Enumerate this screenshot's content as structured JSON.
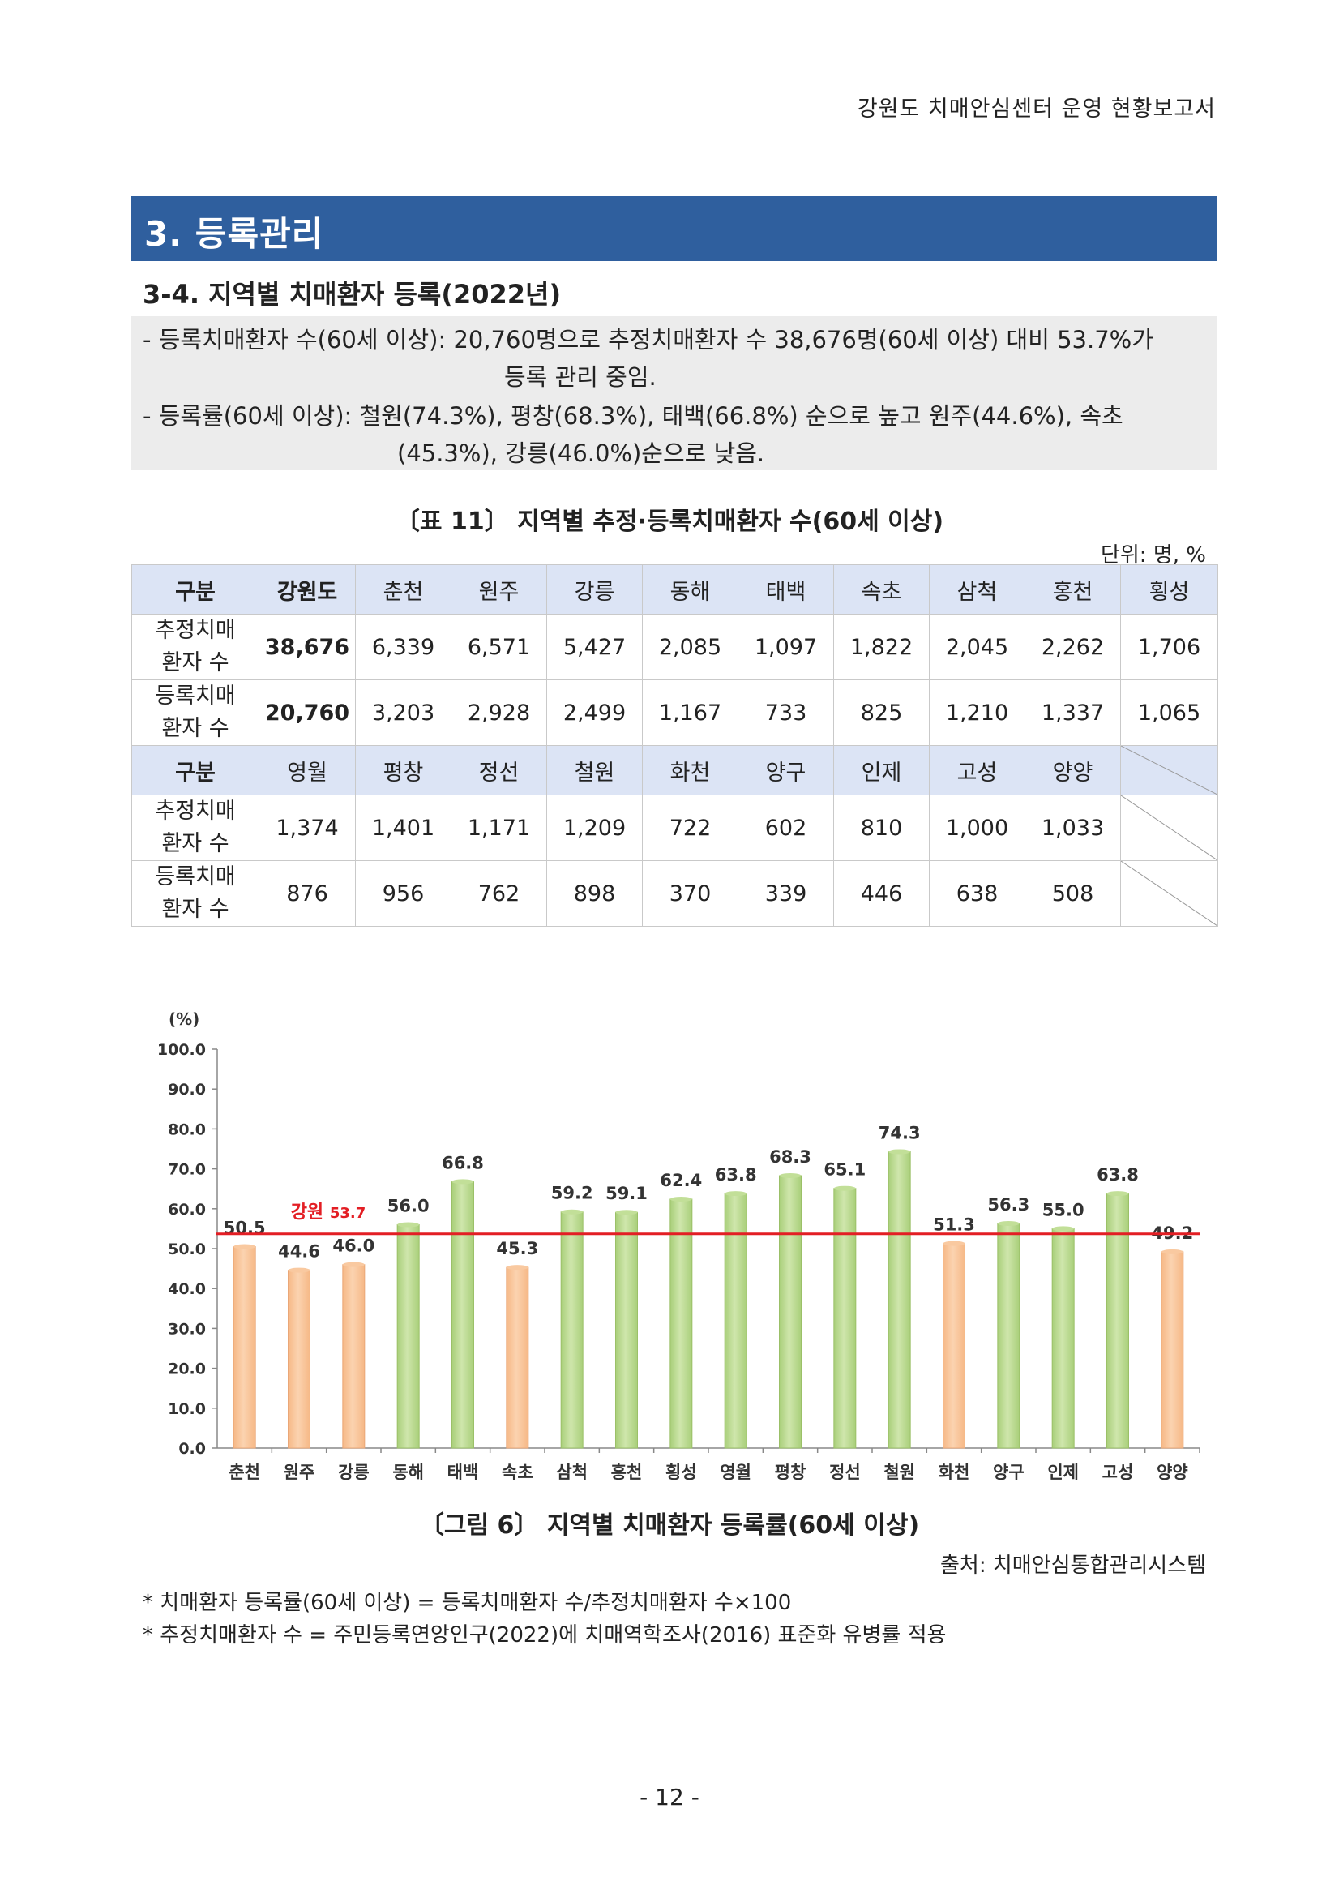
{
  "header": {
    "doc_title": "강원도 치매안심센터 운영 현황보고서"
  },
  "section": {
    "title": "3. 등록관리"
  },
  "subsection": {
    "title": "3-4. 지역별 치매환자 등록(2022년)"
  },
  "summary": {
    "line1": "- 등록치매환자 수(60세 이상): 20,760명으로 추정치매환자 수 38,676명(60세 이상) 대비 53.7%가",
    "line1_cont": "등록 관리 중임.",
    "line2": "- 등록률(60세 이상): 철원(74.3%), 평창(68.3%), 태백(66.8%) 순으로 높고 원주(44.6%), 속초",
    "line2_cont": "(45.3%), 강릉(46.0%)순으로 낮음."
  },
  "table": {
    "title": "〔표 11〕 지역별 추정·등록치매환자 수(60세 이상)",
    "unit": "단위: 명, %",
    "header_label": "구분",
    "row_label_est_1": "추정치매",
    "row_label_est_2": "환자 수",
    "row_label_reg_1": "등록치매",
    "row_label_reg_2": "환자 수",
    "block1": {
      "regions": [
        "강원도",
        "춘천",
        "원주",
        "강릉",
        "동해",
        "태백",
        "속초",
        "삼척",
        "홍천",
        "횡성"
      ],
      "estimated": [
        "38,676",
        "6,339",
        "6,571",
        "5,427",
        "2,085",
        "1,097",
        "1,822",
        "2,045",
        "2,262",
        "1,706"
      ],
      "registered": [
        "20,760",
        "3,203",
        "2,928",
        "2,499",
        "1,167",
        "733",
        "825",
        "1,210",
        "1,337",
        "1,065"
      ]
    },
    "block2": {
      "regions": [
        "영월",
        "평창",
        "정선",
        "철원",
        "화천",
        "양구",
        "인제",
        "고성",
        "양양"
      ],
      "estimated": [
        "1,374",
        "1,401",
        "1,171",
        "1,209",
        "722",
        "602",
        "810",
        "1,000",
        "1,033"
      ],
      "registered": [
        "876",
        "956",
        "762",
        "898",
        "370",
        "339",
        "446",
        "638",
        "508"
      ]
    }
  },
  "chart_data": {
    "type": "bar",
    "ylabel": "(%)",
    "ylim": [
      0,
      100
    ],
    "yticks": [
      "0.0",
      "10.0",
      "20.0",
      "30.0",
      "40.0",
      "50.0",
      "60.0",
      "70.0",
      "80.0",
      "90.0",
      "100.0"
    ],
    "categories": [
      "춘천",
      "원주",
      "강릉",
      "동해",
      "태백",
      "속초",
      "삼척",
      "홍천",
      "횡성",
      "영월",
      "평창",
      "정선",
      "철원",
      "화천",
      "양구",
      "인제",
      "고성",
      "양양"
    ],
    "values": [
      50.5,
      44.6,
      46.0,
      56.0,
      66.8,
      45.3,
      59.2,
      59.1,
      62.4,
      63.8,
      68.3,
      65.1,
      74.3,
      51.3,
      56.3,
      55.0,
      63.8,
      49.2
    ],
    "value_labels": [
      "50.5",
      "44.6",
      "46.0",
      "56.0",
      "66.8",
      "45.3",
      "59.2",
      "59.1",
      "62.4",
      "63.8",
      "68.3",
      "65.1",
      "74.3",
      "51.3",
      "56.3",
      "55.0",
      "63.8",
      "49.2"
    ],
    "reference_line": {
      "label": "강원",
      "value": 53.7,
      "value_label": "53.7",
      "color": "#e31e24"
    },
    "colors": {
      "below_average": "#f6b886",
      "above_average": "#a9cf7a"
    },
    "grid": false
  },
  "figure": {
    "title": "〔그림 6〕 지역별 치매환자 등록률(60세 이상)",
    "source": "출처: 치매안심통합관리시스템"
  },
  "notes": [
    "* 치매환자 등록률(60세 이상) = 등록치매환자 수/추정치매환자 수×100",
    "* 추정치매환자 수 = 주민등록연앙인구(2022)에 치매역학조사(2016) 표준화 유병률 적용"
  ],
  "page_number": "- 12 -"
}
